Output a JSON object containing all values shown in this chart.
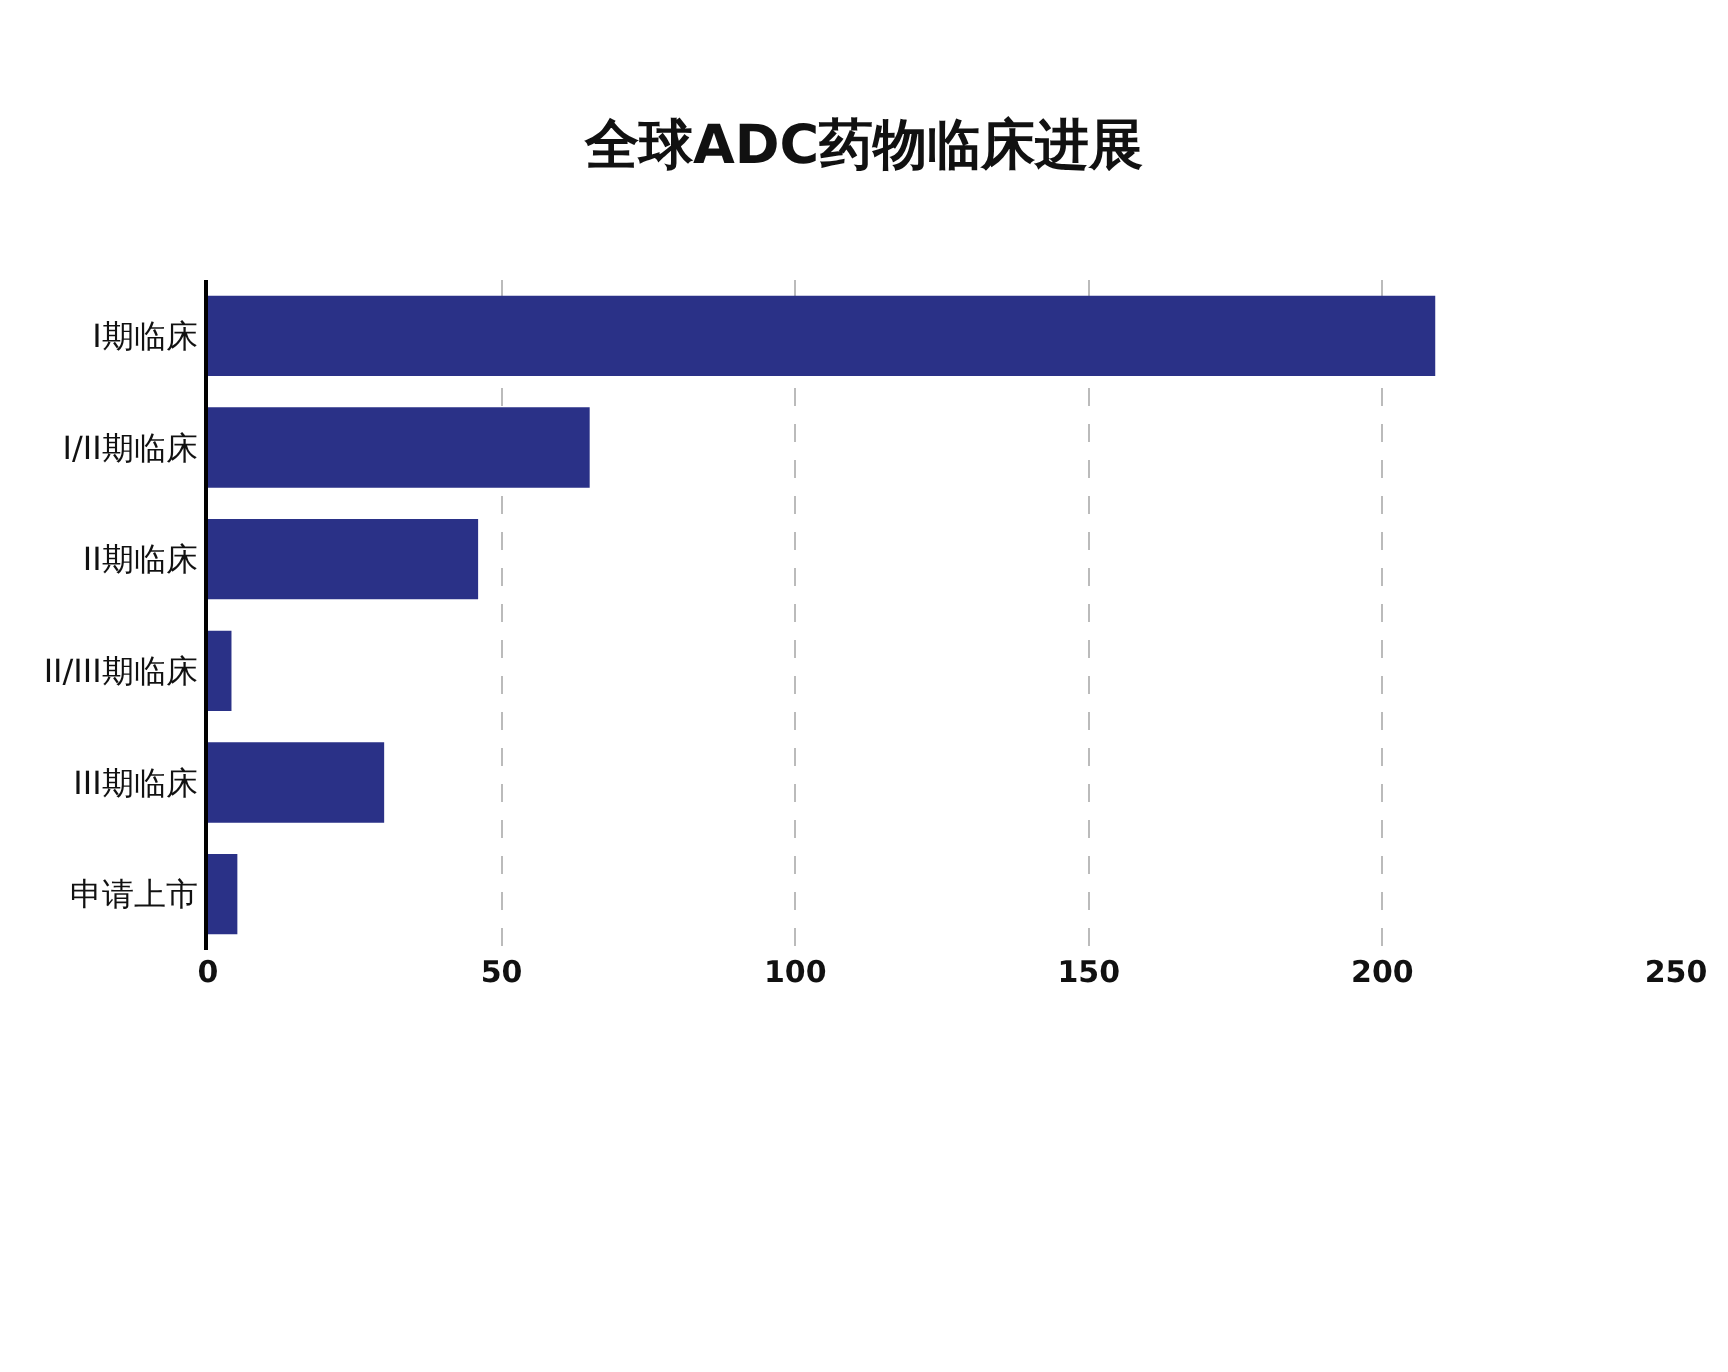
{
  "chart_data": {
    "type": "bar",
    "orientation": "horizontal",
    "title": "全球ADC药物临床进展",
    "categories": [
      "I期临床",
      "I/II期临床",
      "II期临床",
      "II/III期临床",
      "III期临床",
      "申请上市"
    ],
    "values": [
      209,
      65,
      46,
      4,
      30,
      5
    ],
    "color": "#2a3187",
    "xlim": [
      0,
      250
    ],
    "xticks": [
      0,
      50,
      100,
      150,
      200,
      250
    ],
    "grid": "x"
  }
}
